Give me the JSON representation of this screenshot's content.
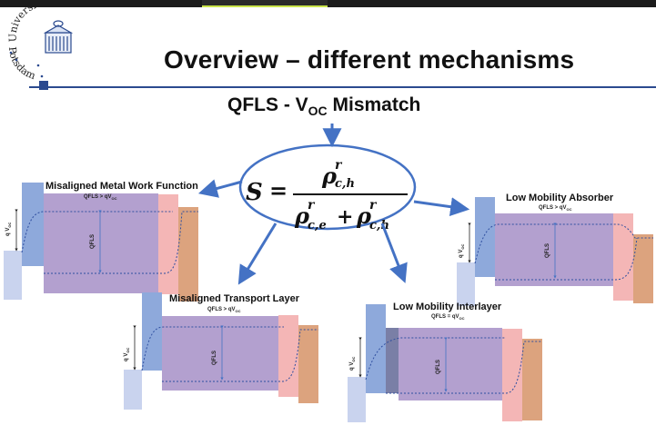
{
  "university": {
    "name_arc": "Universität",
    "city_arc": "Potsdam"
  },
  "title": "Overview – different mechanisms",
  "subtitle": {
    "main": "QFLS - V",
    "sub": "OC",
    "rest": " Mismatch"
  },
  "formula": {
    "lhs": "S",
    "equals": "=",
    "rho": "ρ",
    "sup": "r",
    "sub_ch": "c,h",
    "sub_ce": "c,e",
    "plus": "+"
  },
  "diagrams": {
    "misaligned_work_function": {
      "title": "Misaligned Metal Work Function",
      "cond_main": "QFLS > qV",
      "cond_sub": "OC",
      "qfls_label": "QFLS",
      "voc_label": "q V",
      "voc_sub": "OC"
    },
    "low_mobility_absorber": {
      "title": "Low Mobility Absorber",
      "cond_main": "QFLS > qV",
      "cond_sub": "OC",
      "qfls_label": "QFLS",
      "voc_label": "q V",
      "voc_sub": "OC"
    },
    "misaligned_transport_layer": {
      "title": "Misaligned Transport Layer",
      "cond_main": "QFLS > qV",
      "cond_sub": "OC",
      "qfls_label": "QFLS",
      "voc_label": "q V",
      "voc_sub": "OC"
    },
    "low_mobility_interlayer": {
      "title": "Low Mobility Interlayer",
      "cond_main": "QFLS = qV",
      "cond_sub": "OC",
      "qfls_label": "QFLS",
      "voc_label": "q V",
      "voc_sub": "OC"
    }
  },
  "colors": {
    "accent_blue": "#4472c4",
    "absorber_purple": "#b3a0cf",
    "htl_blue": "#8ea9db",
    "contact_pink": "#f4b6b6",
    "metal_orange": "#dca37e",
    "lower_contact": "#c9d3ee",
    "title_rule": "#2b4a8f"
  }
}
